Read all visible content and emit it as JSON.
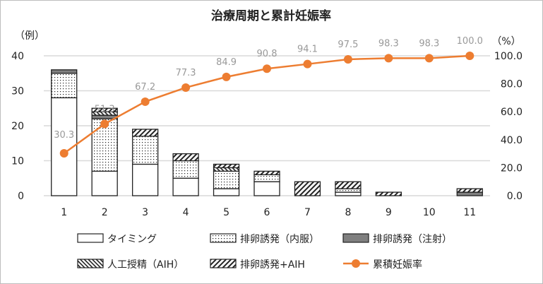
{
  "chart_data": {
    "type": "bar",
    "title": "治療周期と累計妊娠率",
    "left_unit": "（例）",
    "right_unit": "（%）",
    "categories": [
      "1",
      "2",
      "3",
      "4",
      "5",
      "6",
      "7",
      "8",
      "9",
      "10",
      "11"
    ],
    "ylim": [
      0,
      40
    ],
    "y_ticks": [
      "0",
      "10",
      "20",
      "30",
      "40"
    ],
    "y2lim": [
      0,
      100
    ],
    "y2_ticks": [
      "0.0",
      "20.0",
      "40.0",
      "60.0",
      "80.0",
      "100.0"
    ],
    "grid": true,
    "legend_placement": "bottom",
    "stacked": true,
    "series": [
      {
        "name": "タイミング",
        "pattern": "white",
        "values": [
          28,
          7,
          9,
          5,
          2,
          4,
          0,
          1,
          0,
          0,
          0
        ]
      },
      {
        "name": "排卵誘発（内服）",
        "pattern": "dots",
        "values": [
          7,
          15,
          8,
          5,
          5,
          2,
          0,
          1,
          0,
          0,
          0
        ]
      },
      {
        "name": "排卵誘発（注射）",
        "pattern": "gray",
        "values": [
          1,
          1,
          0,
          0,
          0,
          0,
          0,
          0,
          0,
          0,
          1
        ]
      },
      {
        "name": "人工授精（AIH）",
        "pattern": "backslash",
        "values": [
          0,
          1,
          0,
          0,
          1,
          0,
          0,
          0,
          0,
          0,
          0
        ]
      },
      {
        "name": "排卵誘発+AIH",
        "pattern": "slash",
        "values": [
          0,
          1,
          2,
          2,
          1,
          1,
          4,
          2,
          1,
          0,
          1
        ]
      }
    ],
    "line_series": {
      "name": "累積妊娠率",
      "color": "#ED7D31",
      "values": [
        30.3,
        51.3,
        67.2,
        77.3,
        84.9,
        90.8,
        94.1,
        97.5,
        98.3,
        98.3,
        100.0
      ],
      "labels": [
        "30.3",
        "51.3",
        "67.2",
        "77.3",
        "84.9",
        "90.8",
        "94.1",
        "97.5",
        "98.3",
        "98.3",
        "100.0"
      ]
    }
  }
}
